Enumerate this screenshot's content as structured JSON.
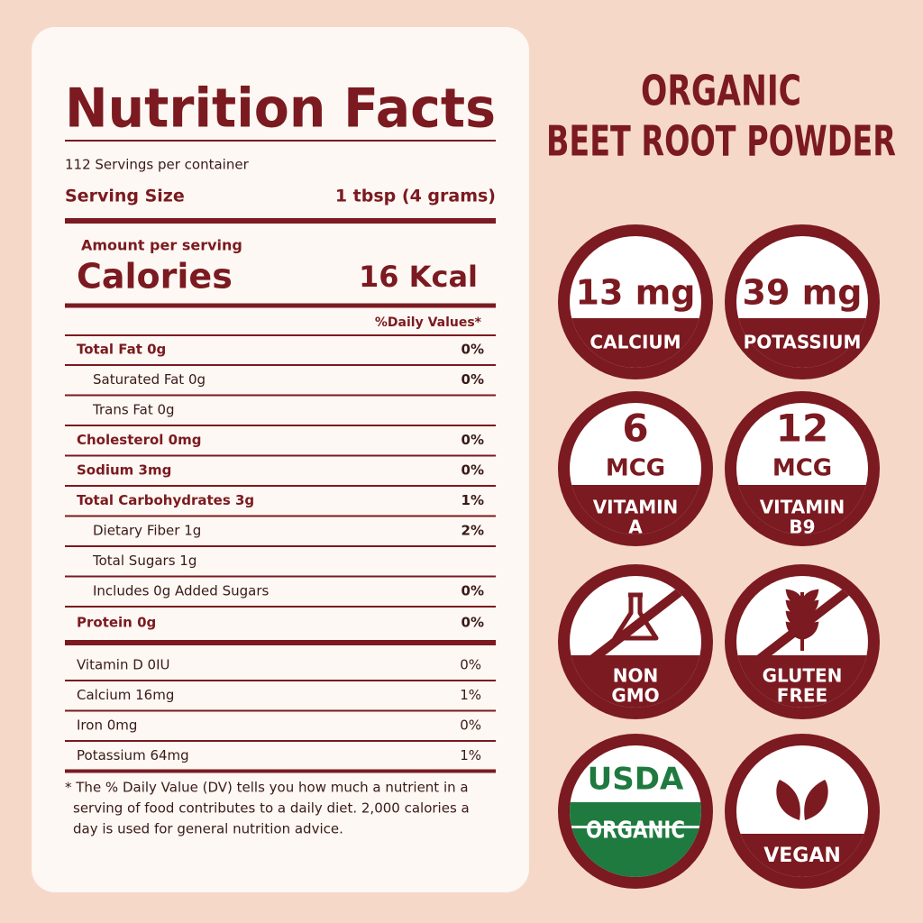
{
  "label": {
    "title": "Nutrition Facts",
    "servings": "112 Servings per container",
    "serving_size_label": "Serving Size",
    "serving_size": "1 tbsp (4 grams)",
    "amount_per_serving": "Amount per serving",
    "calories_label": "Calories",
    "calories": "16 Kcal",
    "daily_values_header": "%Daily Values*",
    "rows": [
      {
        "name": "Total Fat 0g",
        "dv": "0%",
        "style": "bold"
      },
      {
        "name": "Saturated Fat 0g",
        "dv": "0%",
        "style": "indent"
      },
      {
        "name": "Trans Fat 0g",
        "dv": null,
        "style": "indent"
      },
      {
        "name": "Cholesterol 0mg",
        "dv": "0%",
        "style": "bold"
      },
      {
        "name": "Sodium 3mg",
        "dv": "0%",
        "style": "bold"
      },
      {
        "name": "Total Carbohydrates 3g",
        "dv": "1%",
        "style": "bold"
      },
      {
        "name": "Dietary Fiber 1g",
        "dv": "2%",
        "style": "indent"
      },
      {
        "name": "Total Sugars 1g",
        "dv": null,
        "style": "indent"
      },
      {
        "name": "Includes 0g Added Sugars",
        "dv": "0%",
        "style": "indent"
      },
      {
        "name": "Protein 0g",
        "dv": "0%",
        "style": "bold"
      }
    ],
    "vitamins": [
      {
        "name": "Vitamin D 0IU",
        "dv": "0%"
      },
      {
        "name": "Calcium 16mg",
        "dv": "1%"
      },
      {
        "name": "Iron 0mg",
        "dv": "0%"
      },
      {
        "name": "Potassium 64mg",
        "dv": "1%"
      }
    ],
    "footnote": [
      "* The % Daily Value (DV) tells you how much a nutrient in a",
      "serving of food contributes to a daily diet. 2,000 calories a",
      "day is used for general nutrition advice."
    ]
  },
  "product": {
    "title": [
      "ORGANIC",
      "BEET ROOT POWDER"
    ]
  },
  "badges": [
    {
      "kind": "nutrient",
      "top": [
        "13 mg"
      ],
      "bottom": [
        "CALCIUM"
      ]
    },
    {
      "kind": "nutrient",
      "top": [
        "39 mg"
      ],
      "bottom": [
        "POTASSIUM"
      ]
    },
    {
      "kind": "nutrient",
      "top": [
        "6",
        "MCG"
      ],
      "bottom": [
        "VITAMIN",
        "A"
      ]
    },
    {
      "kind": "nutrient",
      "top": [
        "12",
        "MCG"
      ],
      "bottom": [
        "VITAMIN",
        "B9"
      ]
    },
    {
      "kind": "non-gmo",
      "top": [],
      "bottom": [
        "NON",
        "GMO"
      ]
    },
    {
      "kind": "gluten-free",
      "top": [],
      "bottom": [
        "GLUTEN",
        "FREE"
      ]
    },
    {
      "kind": "usda",
      "top": [
        "USDA"
      ],
      "bottom": [
        "ORGANIC"
      ]
    },
    {
      "kind": "vegan",
      "top": [],
      "bottom": [
        "VEGAN"
      ]
    }
  ]
}
